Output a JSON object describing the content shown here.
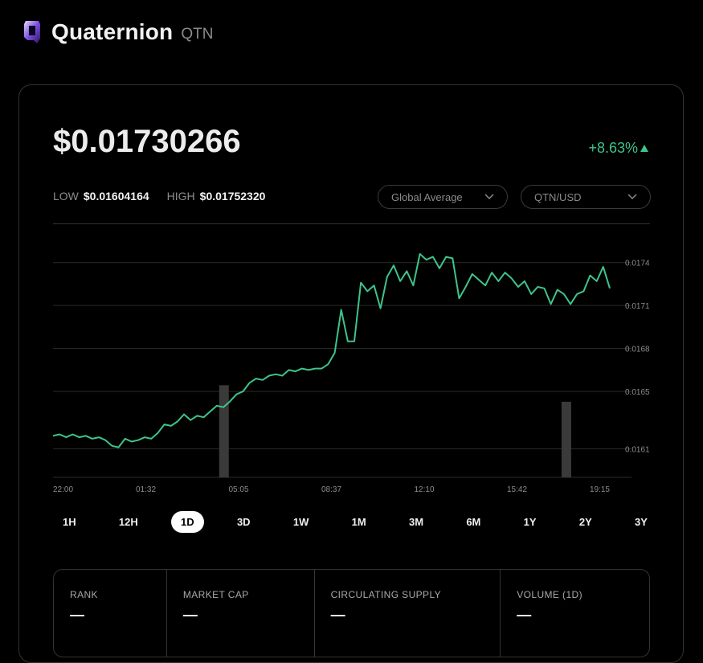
{
  "header": {
    "name": "Quaternion",
    "symbol": "QTN",
    "logo_icon": "quaternion-logo-icon"
  },
  "price": {
    "current": "$0.01730266",
    "change": "+8.63%",
    "change_icon": "triangle-up-icon",
    "change_color": "#3ec48a"
  },
  "range_stats": {
    "low_label": "LOW",
    "low_value": "$0.01604164",
    "high_label": "HIGH",
    "high_value": "$0.01752320"
  },
  "selectors": {
    "source": "Global Average",
    "pair": "QTN/USD"
  },
  "chart_data": {
    "type": "line",
    "title": "",
    "xlabel": "",
    "ylabel": "",
    "x_tick_labels": [
      "22:00",
      "01:32",
      "05:05",
      "08:37",
      "12:10",
      "15:42",
      "19:15"
    ],
    "y_tick_labels": [
      "0.0174",
      "0.0171",
      "0.0168",
      "0.0165",
      "0.0161"
    ],
    "ylim": [
      0.0159,
      0.01755
    ],
    "grid": true,
    "line_color": "#3ec48a",
    "series": [
      {
        "values": [
          0.01619,
          0.0162,
          0.01618,
          0.0162,
          0.01618,
          0.01619,
          0.01617,
          0.01618,
          0.01616,
          0.01612,
          0.01611,
          0.01617,
          0.01615,
          0.01616,
          0.01618,
          0.01617,
          0.01621,
          0.01627,
          0.01626,
          0.01629,
          0.01634,
          0.0163,
          0.01633,
          0.01632,
          0.01636,
          0.0164,
          0.01639,
          0.01643,
          0.01648,
          0.0165,
          0.01656,
          0.01659,
          0.01658,
          0.01661,
          0.01662,
          0.01661,
          0.01665,
          0.01664,
          0.01666,
          0.01665,
          0.01666,
          0.01666,
          0.01669,
          0.01677,
          0.01707,
          0.01685,
          0.01685,
          0.01726,
          0.0172,
          0.01724,
          0.01708,
          0.0173,
          0.01738,
          0.01727,
          0.01734,
          0.01724,
          0.01746,
          0.01742,
          0.01744,
          0.01736,
          0.01744,
          0.01743,
          0.01715,
          0.01723,
          0.01732,
          0.01728,
          0.01724,
          0.01733,
          0.01727,
          0.01733,
          0.01729,
          0.01723,
          0.01727,
          0.01718,
          0.01723,
          0.01722,
          0.01711,
          0.01721,
          0.01718,
          0.01711,
          0.01718,
          0.0172,
          0.01731,
          0.01727,
          0.01737,
          0.01722
        ]
      }
    ],
    "volume_bars": [
      {
        "position": 0.307,
        "value": 0.39
      },
      {
        "position": 0.922,
        "value": 0.32
      }
    ]
  },
  "time_ranges": [
    "1H",
    "12H",
    "1D",
    "3D",
    "1W",
    "1M",
    "3M",
    "6M",
    "1Y",
    "2Y",
    "3Y"
  ],
  "active_range": "1D",
  "stats": [
    {
      "label": "RANK",
      "value": "—"
    },
    {
      "label": "MARKET CAP",
      "value": "—"
    },
    {
      "label": "CIRCULATING SUPPLY",
      "value": "—"
    },
    {
      "label": "VOLUME (1D)",
      "value": "—"
    }
  ]
}
